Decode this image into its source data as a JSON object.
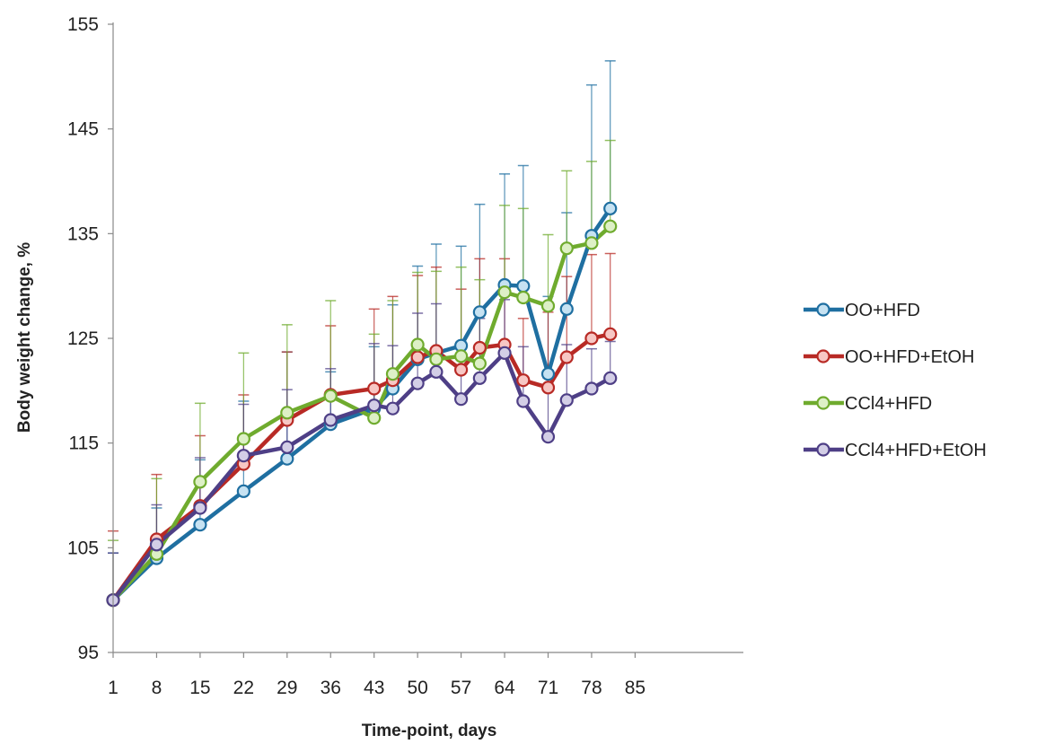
{
  "chart_data": {
    "type": "line",
    "title": "",
    "xlabel": "Time-point, days",
    "ylabel": "Body weight change, %",
    "xlim": [
      1,
      87
    ],
    "ylim": [
      95,
      155
    ],
    "xticks": [
      "1",
      "8",
      "15",
      "22",
      "29",
      "36",
      "43",
      "50",
      "57",
      "64",
      "71",
      "78",
      "85"
    ],
    "yticks": [
      "95",
      "105",
      "115",
      "125",
      "135",
      "145",
      "155"
    ],
    "grid": false,
    "legend_position": "right",
    "x": [
      1,
      8,
      15,
      22,
      29,
      36,
      43,
      46,
      50,
      53,
      57,
      60,
      64,
      67,
      71,
      74,
      78,
      81
    ],
    "series": [
      {
        "name": "OO+HFD",
        "color": "#1F6FA1",
        "marker_fill": "#C6E2F2",
        "values": [
          100,
          104,
          107.2,
          110.4,
          113.5,
          116.8,
          118.3,
          120.2,
          123.0,
          123.6,
          124.3,
          127.5,
          130.1,
          130.0,
          121.6,
          127.8,
          134.8,
          137.4
        ],
        "errors": [
          4.5,
          4.8,
          6.2,
          8.6,
          10.2,
          5.0,
          5.9,
          8.0,
          8.9,
          10.4,
          9.5,
          10.3,
          10.6,
          11.5,
          7.4,
          9.2,
          14.4,
          14.1
        ]
      },
      {
        "name": "OO+HFD+EtOH",
        "color": "#B82A25",
        "marker_fill": "#F7C7C4",
        "values": [
          100,
          105.8,
          109.0,
          113.0,
          117.2,
          119.6,
          120.2,
          121.0,
          123.2,
          123.8,
          122.0,
          124.1,
          124.4,
          121.0,
          120.3,
          123.2,
          125.0,
          125.4
        ],
        "errors": [
          6.6,
          6.2,
          6.7,
          6.6,
          6.5,
          6.6,
          7.6,
          8.0,
          7.8,
          8.0,
          7.7,
          8.5,
          8.2,
          5.9,
          7.2,
          7.7,
          8.0,
          7.7
        ]
      },
      {
        "name": "CCl4+HFD",
        "color": "#6FAB2E",
        "marker_fill": "#DDF0C6",
        "values": [
          100,
          104.4,
          111.3,
          115.4,
          117.9,
          119.5,
          117.4,
          121.6,
          124.4,
          123.0,
          123.3,
          122.6,
          129.4,
          128.9,
          128.1,
          133.6,
          134.1,
          135.7
        ],
        "errors": [
          5.7,
          7.2,
          7.5,
          8.2,
          8.4,
          9.1,
          8.0,
          7.0,
          6.9,
          8.4,
          8.5,
          8.0,
          8.3,
          8.5,
          6.8,
          7.4,
          7.8,
          8.2
        ]
      },
      {
        "name": "CCl4+HFD+EtOH",
        "color": "#4E3F86",
        "marker_fill": "#D3CEE6",
        "values": [
          100,
          105.3,
          108.8,
          113.8,
          114.6,
          117.2,
          118.6,
          118.3,
          120.7,
          121.8,
          119.2,
          121.2,
          123.6,
          119.0,
          115.6,
          119.1,
          120.2,
          121.2
        ],
        "errors": [
          4.5,
          3.8,
          4.8,
          4.9,
          5.5,
          4.9,
          5.9,
          6.0,
          6.7,
          6.5,
          5.3,
          5.7,
          5.1,
          5.2,
          5.6,
          5.3,
          3.8,
          3.5
        ]
      }
    ]
  }
}
